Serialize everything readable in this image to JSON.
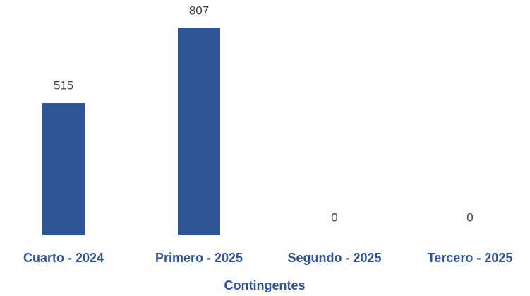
{
  "chart_data": {
    "type": "bar",
    "x_label": "Contingentes",
    "categories": [
      "Cuarto - 2024",
      "Primero - 2025",
      "Segundo - 2025",
      "Tercero - 2025"
    ],
    "values": [
      515,
      807,
      0,
      0
    ],
    "color": "#2f5597"
  }
}
